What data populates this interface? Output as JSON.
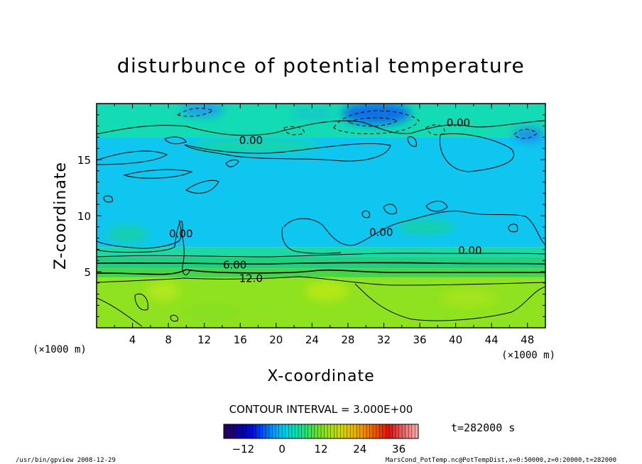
{
  "chart_data": {
    "type": "heatmap",
    "title": "disturbunce of potential temperature",
    "xlabel": "X-coordinate",
    "ylabel": "Z-coordinate",
    "x_unit_left": "(×1000 m)",
    "x_unit_right": "(×1000 m)",
    "xlim": [
      0,
      50
    ],
    "ylim": [
      0,
      20
    ],
    "xticks": [
      4,
      8,
      12,
      16,
      20,
      24,
      28,
      32,
      36,
      40,
      44,
      48
    ],
    "yticks": [
      5,
      10,
      15
    ],
    "contour_interval_text": "CONTOUR INTERVAL = 3.000E+00",
    "contour_labels": [
      {
        "text": "0.00",
        "x": 17.2,
        "z": 16.7
      },
      {
        "text": "0.00",
        "x": 40.3,
        "z": 18.3
      },
      {
        "text": "0.00",
        "x": 41.6,
        "z": 6.9
      },
      {
        "text": "6.00",
        "x": 15.4,
        "z": 5.6
      },
      {
        "text": "12.0",
        "x": 17.2,
        "z": 4.4
      },
      {
        "text": "0.00",
        "x": 31.7,
        "z": 8.5
      },
      {
        "text": "0.00",
        "x": 9.4,
        "z": 8.4
      }
    ],
    "layers": [
      {
        "z0": 0,
        "z1": 4.5,
        "value": 18,
        "color": "#8fe21f"
      },
      {
        "z0": 4.5,
        "z1": 5.3,
        "value": 12,
        "color": "#45d548"
      },
      {
        "z0": 5.3,
        "z1": 6.3,
        "value": 6,
        "color": "#22cf7e"
      },
      {
        "z0": 6.3,
        "z1": 7.2,
        "value": 3,
        "color": "#1cd8a6"
      },
      {
        "z0": 7.2,
        "z1": 17.0,
        "value": -2,
        "color": "#0fc6f0"
      },
      {
        "z0": 17.0,
        "z1": 20,
        "value": 2,
        "color": "#13dbb4"
      }
    ],
    "colorbar": {
      "min": -18,
      "max": 42,
      "ticks": [
        -12,
        0,
        12,
        24,
        36
      ],
      "colors": [
        "#2a005a",
        "#1a007c",
        "#0000b4",
        "#0010e0",
        "#0050f8",
        "#0094f8",
        "#00c6f0",
        "#00dcc0",
        "#18e090",
        "#46e050",
        "#7ce020",
        "#a8e010",
        "#d0d800",
        "#e8c000",
        "#f0a000",
        "#f07000",
        "#ec4000",
        "#e01010",
        "#e05050",
        "#f08080",
        "#f8b0b0"
      ]
    },
    "time_label": "t=282000 s"
  },
  "footer": {
    "left": "/usr/bin/gpview   2008-12-29",
    "right": "MarsCond_PotTemp.nc@PotTempDist,x=0:50000,z=0:20000,t=282000"
  }
}
